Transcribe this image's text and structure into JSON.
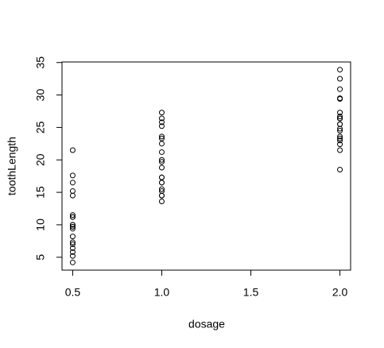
{
  "chart_data": {
    "type": "scatter",
    "xlabel": "dosage",
    "ylabel": "toothLength",
    "x": [
      0.5,
      0.5,
      0.5,
      0.5,
      0.5,
      0.5,
      0.5,
      0.5,
      0.5,
      0.5,
      0.5,
      0.5,
      0.5,
      0.5,
      0.5,
      0.5,
      0.5,
      0.5,
      0.5,
      0.5,
      1,
      1,
      1,
      1,
      1,
      1,
      1,
      1,
      1,
      1,
      1,
      1,
      1,
      1,
      1,
      1,
      1,
      1,
      1,
      1,
      2,
      2,
      2,
      2,
      2,
      2,
      2,
      2,
      2,
      2,
      2,
      2,
      2,
      2,
      2,
      2,
      2,
      2,
      2,
      2
    ],
    "values": [
      4.2,
      11.5,
      7.3,
      5.8,
      6.4,
      10,
      11.2,
      11.2,
      5.2,
      7,
      15.2,
      21.5,
      17.6,
      9.7,
      14.5,
      10,
      8.2,
      9.4,
      16.5,
      9.7,
      16.5,
      16.5,
      15.2,
      17.3,
      22.5,
      17.3,
      13.6,
      14.5,
      18.8,
      15.5,
      19.7,
      23.3,
      23.6,
      26.4,
      20,
      25.2,
      25.8,
      21.2,
      14.5,
      27.3,
      23.6,
      18.5,
      33.9,
      25.5,
      26.4,
      32.5,
      26.7,
      21.5,
      23.3,
      29.5,
      25.5,
      26.4,
      22.4,
      24.5,
      24.8,
      30.9,
      26.4,
      27.3,
      29.4,
      23
    ],
    "color": "#000000",
    "xlim": [
      0.44,
      2.06
    ],
    "xticks": [
      0.5,
      {
        "value": 1,
        "label": "1.0"
      },
      1.5,
      {
        "value": 2,
        "label": "2.0"
      }
    ],
    "ylim": [
      3.012,
      35.088
    ],
    "yticks": [
      5,
      10,
      15,
      20,
      25,
      30,
      35
    ]
  }
}
